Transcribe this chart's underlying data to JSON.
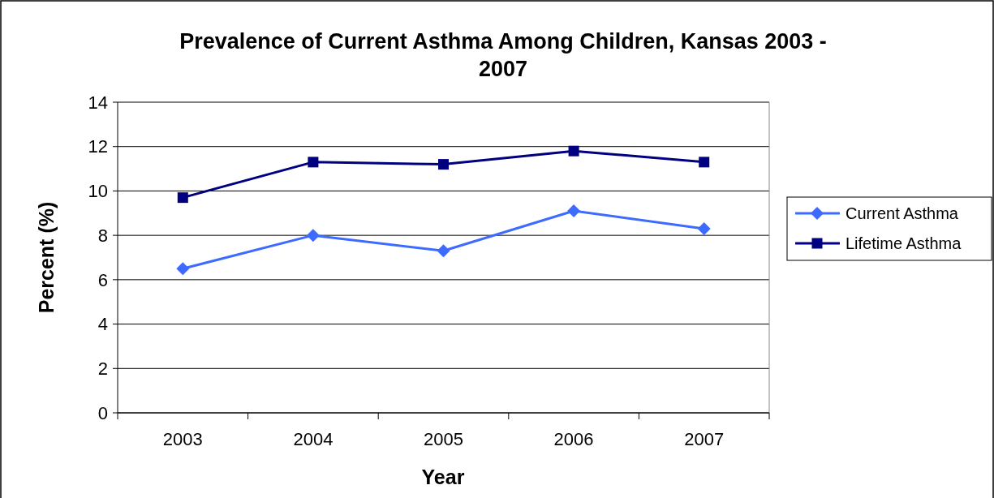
{
  "chart_data": {
    "type": "line",
    "title": "Prevalence of Current Asthma Among Children, Kansas 2003 - 2007",
    "xlabel": "Year",
    "ylabel": "Percent (%)",
    "categories": [
      "2003",
      "2004",
      "2005",
      "2006",
      "2007"
    ],
    "series": [
      {
        "name": "Current Asthma",
        "color": "#3d6bff",
        "marker": "diamond",
        "values": [
          6.5,
          8.0,
          7.3,
          9.1,
          8.3
        ]
      },
      {
        "name": "Lifetime Asthma",
        "color": "#000080",
        "marker": "square",
        "values": [
          9.7,
          11.3,
          11.2,
          11.8,
          11.3
        ]
      }
    ],
    "ylim": [
      0,
      14
    ],
    "yticks": [
      0,
      2,
      4,
      6,
      8,
      10,
      12,
      14
    ],
    "grid": "y",
    "legend": "right"
  }
}
